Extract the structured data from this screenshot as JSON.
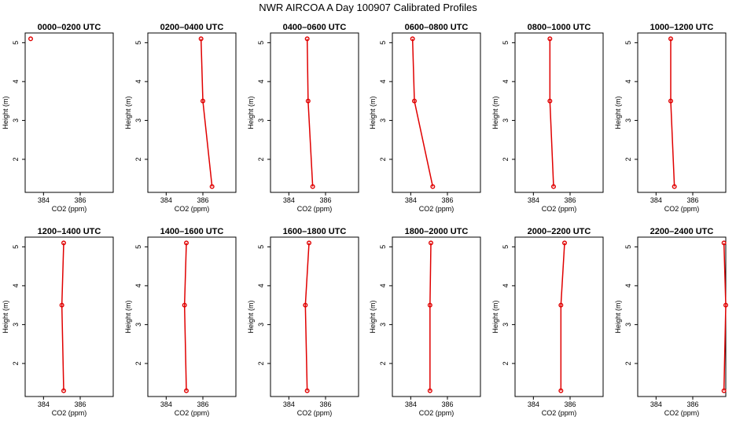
{
  "figure_title": "NWR AIRCOA A  Day 100907  Calibrated Profiles",
  "chart_data": [
    {
      "type": "line",
      "title": "0000–0200 UTC",
      "xlabel": "CO2 (ppm)",
      "ylabel": "Height (m)",
      "xlim": [
        383,
        387.8
      ],
      "ylim": [
        1.15,
        5.25
      ],
      "xticks": [
        384,
        386
      ],
      "yticks": [
        2,
        3,
        4,
        5
      ],
      "points": [
        {
          "x": 383.3,
          "y": 5.1
        }
      ]
    },
    {
      "type": "line",
      "title": "0200–0400 UTC",
      "xlabel": "CO2 (ppm)",
      "ylabel": "Height (m)",
      "xlim": [
        383,
        387.8
      ],
      "ylim": [
        1.15,
        5.25
      ],
      "xticks": [
        384,
        386
      ],
      "yticks": [
        2,
        3,
        4,
        5
      ],
      "points": [
        {
          "x": 385.9,
          "y": 5.1
        },
        {
          "x": 386.0,
          "y": 3.5
        },
        {
          "x": 386.5,
          "y": 1.3
        }
      ]
    },
    {
      "type": "line",
      "title": "0400–0600 UTC",
      "xlabel": "CO2 (ppm)",
      "ylabel": "Height (m)",
      "xlim": [
        383,
        387.8
      ],
      "ylim": [
        1.15,
        5.25
      ],
      "xticks": [
        384,
        386
      ],
      "yticks": [
        2,
        3,
        4,
        5
      ],
      "points": [
        {
          "x": 385.0,
          "y": 5.1
        },
        {
          "x": 385.05,
          "y": 3.5
        },
        {
          "x": 385.3,
          "y": 1.3
        }
      ]
    },
    {
      "type": "line",
      "title": "0600–0800 UTC",
      "xlabel": "CO2 (ppm)",
      "ylabel": "Height (m)",
      "xlim": [
        383,
        387.8
      ],
      "ylim": [
        1.15,
        5.25
      ],
      "xticks": [
        384,
        386
      ],
      "yticks": [
        2,
        3,
        4,
        5
      ],
      "points": [
        {
          "x": 384.1,
          "y": 5.1
        },
        {
          "x": 384.2,
          "y": 3.5
        },
        {
          "x": 385.2,
          "y": 1.3
        }
      ]
    },
    {
      "type": "line",
      "title": "0800–1000 UTC",
      "xlabel": "CO2 (ppm)",
      "ylabel": "Height (m)",
      "xlim": [
        383,
        387.8
      ],
      "ylim": [
        1.15,
        5.25
      ],
      "xticks": [
        384,
        386
      ],
      "yticks": [
        2,
        3,
        4,
        5
      ],
      "points": [
        {
          "x": 384.9,
          "y": 5.1
        },
        {
          "x": 384.9,
          "y": 3.5
        },
        {
          "x": 385.1,
          "y": 1.3
        }
      ]
    },
    {
      "type": "line",
      "title": "1000–1200 UTC",
      "xlabel": "CO2 (ppm)",
      "ylabel": "Height (m)",
      "xlim": [
        383,
        387.8
      ],
      "ylim": [
        1.15,
        5.25
      ],
      "xticks": [
        384,
        386
      ],
      "yticks": [
        2,
        3,
        4,
        5
      ],
      "points": [
        {
          "x": 384.8,
          "y": 5.1
        },
        {
          "x": 384.8,
          "y": 3.5
        },
        {
          "x": 385.0,
          "y": 1.3
        }
      ]
    },
    {
      "type": "line",
      "title": "1200–1400 UTC",
      "xlabel": "CO2 (ppm)",
      "ylabel": "Height (m)",
      "xlim": [
        383,
        387.8
      ],
      "ylim": [
        1.15,
        5.25
      ],
      "xticks": [
        384,
        386
      ],
      "yticks": [
        2,
        3,
        4,
        5
      ],
      "points": [
        {
          "x": 385.1,
          "y": 5.1
        },
        {
          "x": 385.0,
          "y": 3.5
        },
        {
          "x": 385.1,
          "y": 1.3
        }
      ]
    },
    {
      "type": "line",
      "title": "1400–1600 UTC",
      "xlabel": "CO2 (ppm)",
      "ylabel": "Height (m)",
      "xlim": [
        383,
        387.8
      ],
      "ylim": [
        1.15,
        5.25
      ],
      "xticks": [
        384,
        386
      ],
      "yticks": [
        2,
        3,
        4,
        5
      ],
      "points": [
        {
          "x": 385.1,
          "y": 5.1
        },
        {
          "x": 385.0,
          "y": 3.5
        },
        {
          "x": 385.1,
          "y": 1.3
        }
      ]
    },
    {
      "type": "line",
      "title": "1600–1800 UTC",
      "xlabel": "CO2 (ppm)",
      "ylabel": "Height (m)",
      "xlim": [
        383,
        387.8
      ],
      "ylim": [
        1.15,
        5.25
      ],
      "xticks": [
        384,
        386
      ],
      "yticks": [
        2,
        3,
        4,
        5
      ],
      "points": [
        {
          "x": 385.1,
          "y": 5.1
        },
        {
          "x": 384.9,
          "y": 3.5
        },
        {
          "x": 385.0,
          "y": 1.3
        }
      ]
    },
    {
      "type": "line",
      "title": "1800–2000 UTC",
      "xlabel": "CO2 (ppm)",
      "ylabel": "Height (m)",
      "xlim": [
        383,
        387.8
      ],
      "ylim": [
        1.15,
        5.25
      ],
      "xticks": [
        384,
        386
      ],
      "yticks": [
        2,
        3,
        4,
        5
      ],
      "points": [
        {
          "x": 385.1,
          "y": 5.1
        },
        {
          "x": 385.05,
          "y": 3.5
        },
        {
          "x": 385.05,
          "y": 1.3
        }
      ]
    },
    {
      "type": "line",
      "title": "2000–2200 UTC",
      "xlabel": "CO2 (ppm)",
      "ylabel": "Height (m)",
      "xlim": [
        383,
        387.8
      ],
      "ylim": [
        1.15,
        5.25
      ],
      "xticks": [
        384,
        386
      ],
      "yticks": [
        2,
        3,
        4,
        5
      ],
      "points": [
        {
          "x": 385.7,
          "y": 5.1
        },
        {
          "x": 385.5,
          "y": 3.5
        },
        {
          "x": 385.5,
          "y": 1.3
        }
      ]
    },
    {
      "type": "line",
      "title": "2200–2400 UTC",
      "xlabel": "CO2 (ppm)",
      "ylabel": "Height (m)",
      "xlim": [
        383,
        387.8
      ],
      "ylim": [
        1.15,
        5.25
      ],
      "xticks": [
        384,
        386
      ],
      "yticks": [
        2,
        3,
        4,
        5
      ],
      "points": [
        {
          "x": 387.7,
          "y": 5.1
        },
        {
          "x": 387.8,
          "y": 3.5
        },
        {
          "x": 387.7,
          "y": 1.3
        }
      ]
    }
  ]
}
